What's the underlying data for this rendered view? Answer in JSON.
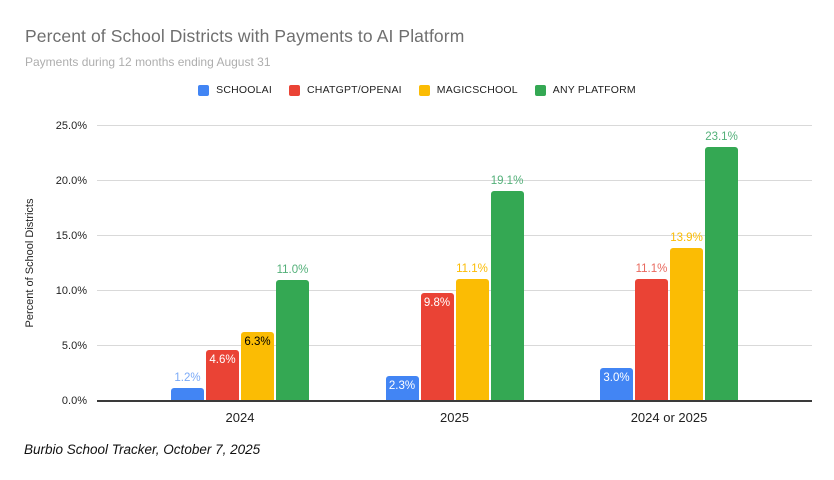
{
  "footer": {
    "source_note": "Burbio School Tracker, October 7, 2025"
  },
  "chart_data": {
    "type": "bar",
    "title": "Percent of School Districts with Payments to AI Platform",
    "subtitle": "Payments during 12 months ending August 31",
    "xlabel": "",
    "ylabel": "Percent of School Districts",
    "ylim": [
      0,
      25
    ],
    "yticks": [
      0,
      5,
      10,
      15,
      20,
      25
    ],
    "ytick_format": "one-decimal-percent",
    "grid": true,
    "legend_position": "top",
    "value_label_format": "one-decimal-percent",
    "categories": [
      "2024",
      "2025",
      "2024 or 2025"
    ],
    "series": [
      {
        "name": "SCHOOLAI",
        "color": "#4285f4",
        "values": [
          1.2,
          2.3,
          3.0
        ],
        "value_label_positions": [
          "above",
          "inside",
          "inside"
        ],
        "outside_label_color": "#7baaf7",
        "inside_label_color": "#ffffff"
      },
      {
        "name": "CHATGPT/OPENAI",
        "color": "#ea4335",
        "values": [
          4.6,
          9.8,
          11.1
        ],
        "value_label_positions": [
          "inside",
          "inside",
          "above"
        ],
        "outside_label_color": "#e8695e",
        "inside_label_color": "#ffffff"
      },
      {
        "name": "MAGICSCHOOL",
        "color": "#fbbc04",
        "values": [
          6.3,
          11.1,
          13.9
        ],
        "value_label_positions": [
          "inside",
          "above",
          "above"
        ],
        "outside_label_color": "#fbbc04",
        "inside_label_color": "#000000"
      },
      {
        "name": "ANY PLATFORM",
        "color": "#34a853",
        "values": [
          11.0,
          19.1,
          23.1
        ],
        "value_label_positions": [
          "above",
          "above",
          "above"
        ],
        "outside_label_color": "#53b079",
        "inside_label_color": "#ffffff"
      }
    ]
  }
}
